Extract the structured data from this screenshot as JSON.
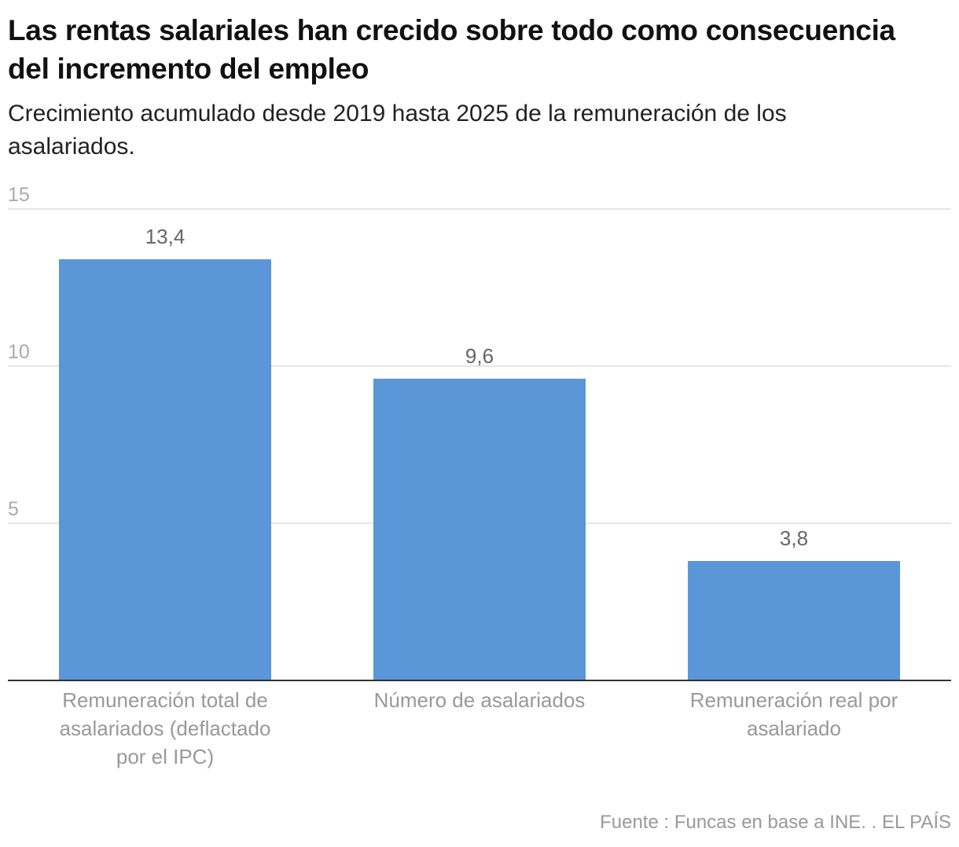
{
  "title": "Las rentas salariales han crecido sobre todo como consecuencia del incremento del empleo",
  "subtitle": "Crecimiento acumulado desde 2019 hasta 2025 de la remuneración de los asalariados.",
  "footer": "Fuente : Funcas en base a INE. . EL PAÍS",
  "colors": {
    "bar": "#5b96d9",
    "grid": "#dddddd",
    "axis": "#333333",
    "tick_label": "#aaaaaa",
    "data_label": "#666666",
    "category_label": "#999999"
  },
  "chart_data": {
    "type": "bar",
    "categories": [
      [
        "Remuneración total de",
        "asalariados (deflactado",
        "por el IPC)"
      ],
      [
        "Número de asalariados"
      ],
      [
        "Remuneración real por",
        "asalariado"
      ]
    ],
    "values": [
      13.4,
      9.6,
      3.8
    ],
    "data_labels": [
      "13,4",
      "9,6",
      "3,8"
    ],
    "ylim": [
      0,
      15
    ],
    "yticks": [
      5,
      10,
      15
    ],
    "ytick_labels": [
      "5",
      "10",
      "15"
    ],
    "grid": true,
    "legend": "none"
  }
}
